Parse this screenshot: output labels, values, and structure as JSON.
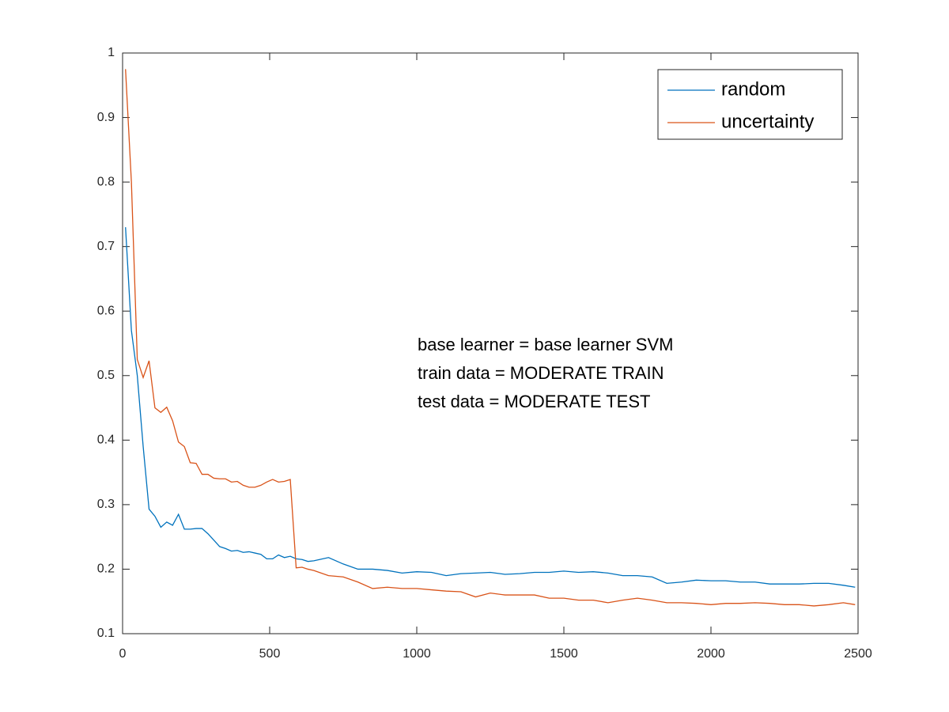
{
  "chart_data": {
    "type": "line",
    "x": [
      10,
      30,
      50,
      70,
      90,
      110,
      130,
      150,
      170,
      190,
      210,
      230,
      250,
      270,
      290,
      310,
      330,
      350,
      370,
      390,
      410,
      430,
      450,
      470,
      490,
      510,
      530,
      550,
      570,
      590,
      610,
      630,
      650,
      700,
      750,
      800,
      850,
      900,
      950,
      1000,
      1050,
      1100,
      1150,
      1200,
      1250,
      1300,
      1350,
      1400,
      1450,
      1500,
      1550,
      1600,
      1650,
      1700,
      1750,
      1800,
      1850,
      1900,
      1950,
      2000,
      2050,
      2100,
      2150,
      2200,
      2250,
      2300,
      2350,
      2400,
      2450,
      2490
    ],
    "series": [
      {
        "name": "random",
        "color": "#0072bd",
        "values": [
          0.73,
          0.57,
          0.5,
          0.39,
          0.293,
          0.282,
          0.265,
          0.273,
          0.268,
          0.285,
          0.262,
          0.262,
          0.263,
          0.263,
          0.255,
          0.245,
          0.235,
          0.232,
          0.228,
          0.229,
          0.226,
          0.227,
          0.225,
          0.223,
          0.216,
          0.216,
          0.222,
          0.218,
          0.22,
          0.216,
          0.215,
          0.212,
          0.213,
          0.218,
          0.208,
          0.2,
          0.2,
          0.198,
          0.194,
          0.196,
          0.195,
          0.19,
          0.193,
          0.194,
          0.195,
          0.192,
          0.193,
          0.195,
          0.195,
          0.197,
          0.195,
          0.196,
          0.194,
          0.19,
          0.19,
          0.188,
          0.178,
          0.18,
          0.183,
          0.182,
          0.182,
          0.18,
          0.18,
          0.177,
          0.177,
          0.177,
          0.178,
          0.178,
          0.175,
          0.172
        ]
      },
      {
        "name": "uncertainty",
        "color": "#d95319",
        "values": [
          0.975,
          0.8,
          0.525,
          0.497,
          0.523,
          0.45,
          0.443,
          0.451,
          0.43,
          0.397,
          0.39,
          0.365,
          0.364,
          0.347,
          0.347,
          0.341,
          0.34,
          0.34,
          0.335,
          0.336,
          0.33,
          0.327,
          0.327,
          0.33,
          0.335,
          0.339,
          0.335,
          0.336,
          0.339,
          0.202,
          0.203,
          0.2,
          0.198,
          0.19,
          0.188,
          0.18,
          0.17,
          0.172,
          0.17,
          0.17,
          0.168,
          0.166,
          0.165,
          0.157,
          0.163,
          0.16,
          0.16,
          0.16,
          0.155,
          0.155,
          0.152,
          0.152,
          0.148,
          0.152,
          0.155,
          0.152,
          0.148,
          0.148,
          0.147,
          0.145,
          0.147,
          0.147,
          0.148,
          0.147,
          0.145,
          0.145,
          0.143,
          0.145,
          0.148,
          0.145
        ]
      }
    ],
    "annotations": [
      "base learner = base learner SVM",
      "train data = MODERATE TRAIN",
      "test data = MODERATE TEST"
    ],
    "xlim": [
      0,
      2500
    ],
    "xticks": [
      0,
      500,
      1000,
      1500,
      2000,
      2500
    ],
    "ylim": [
      0.1,
      1
    ],
    "yticks": [
      0.1,
      0.2,
      0.3,
      0.4,
      0.5,
      0.6,
      0.7,
      0.8,
      0.9,
      1
    ],
    "legend": "upper-right"
  }
}
